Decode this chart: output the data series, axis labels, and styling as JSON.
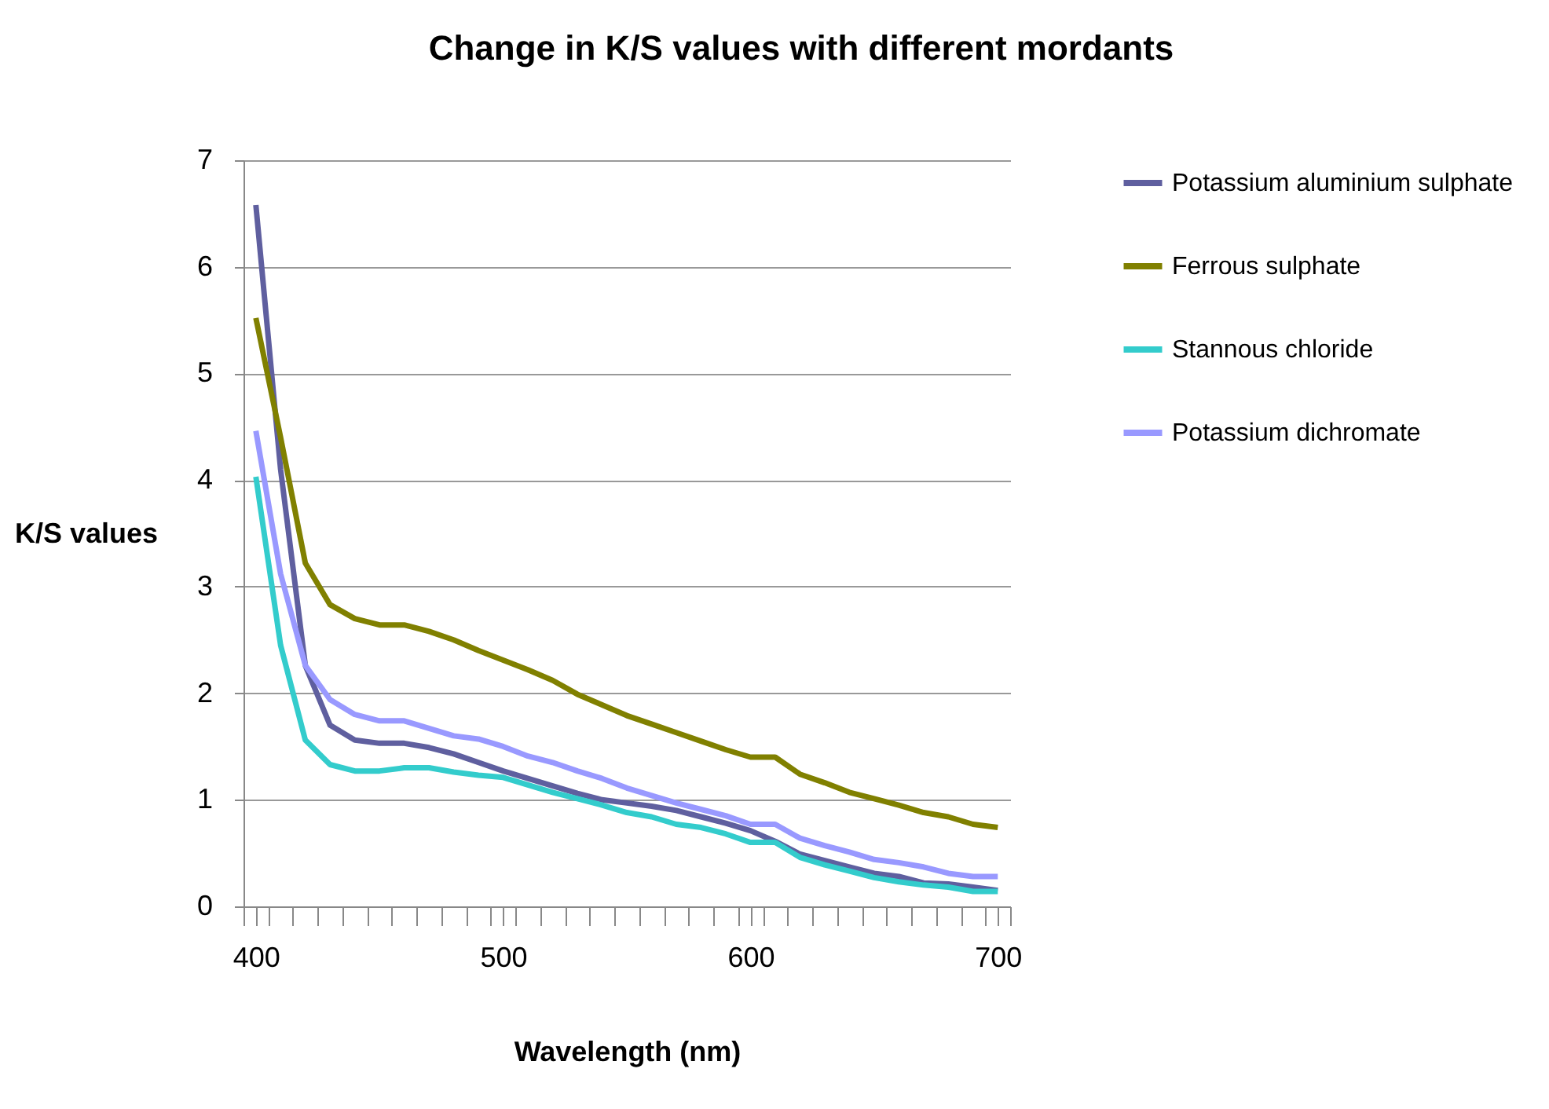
{
  "chart_data": {
    "type": "line",
    "title": "Change in K/S values with different mordants",
    "xlabel": "Wavelength (nm)",
    "ylabel": "K/S values",
    "x": [
      400,
      410,
      420,
      430,
      440,
      450,
      460,
      470,
      480,
      490,
      500,
      510,
      520,
      530,
      540,
      550,
      560,
      570,
      580,
      590,
      600,
      610,
      620,
      630,
      640,
      650,
      660,
      670,
      680,
      690,
      700
    ],
    "series": [
      {
        "name": "Potassium aluminium sulphate",
        "color": "#5f5f9f",
        "values": [
          6.58,
          4.1,
          2.26,
          1.7,
          1.56,
          1.53,
          1.53,
          1.49,
          1.43,
          1.35,
          1.27,
          1.2,
          1.13,
          1.06,
          1.0,
          0.97,
          0.94,
          0.9,
          0.84,
          0.78,
          0.71,
          0.61,
          0.49,
          0.43,
          0.37,
          0.31,
          0.28,
          0.22,
          0.21,
          0.18,
          0.15
        ]
      },
      {
        "name": "Ferrous sulphate",
        "color": "#808000",
        "values": [
          5.52,
          4.4,
          3.22,
          2.83,
          2.7,
          2.64,
          2.64,
          2.58,
          2.5,
          2.4,
          2.31,
          2.22,
          2.12,
          1.99,
          1.89,
          1.79,
          1.71,
          1.63,
          1.55,
          1.47,
          1.4,
          1.4,
          1.24,
          1.16,
          1.07,
          1.01,
          0.95,
          0.88,
          0.84,
          0.77,
          0.74
        ]
      },
      {
        "name": "Stannous chloride",
        "color": "#33cccc",
        "values": [
          4.03,
          2.45,
          1.56,
          1.33,
          1.27,
          1.27,
          1.3,
          1.3,
          1.26,
          1.23,
          1.21,
          1.14,
          1.07,
          1.01,
          0.95,
          0.88,
          0.84,
          0.77,
          0.74,
          0.68,
          0.6,
          0.6,
          0.46,
          0.39,
          0.33,
          0.27,
          0.23,
          0.2,
          0.18,
          0.14,
          0.14
        ]
      },
      {
        "name": "Potassium dichromate",
        "color": "#9999ff",
        "values": [
          4.46,
          3.12,
          2.26,
          1.94,
          1.8,
          1.74,
          1.74,
          1.67,
          1.6,
          1.57,
          1.5,
          1.41,
          1.35,
          1.27,
          1.2,
          1.11,
          1.04,
          0.97,
          0.91,
          0.85,
          0.77,
          0.77,
          0.64,
          0.57,
          0.51,
          0.44,
          0.41,
          0.37,
          0.31,
          0.28,
          0.28
        ]
      }
    ],
    "xlim": [
      395,
      705
    ],
    "xticks": [
      {
        "value": 395,
        "label": null
      },
      400,
      {
        "value": 405,
        "label": null
      },
      {
        "value": 415,
        "label": null
      },
      {
        "value": 425,
        "label": null
      },
      {
        "value": 435,
        "label": null
      },
      {
        "value": 445,
        "label": null
      },
      {
        "value": 455,
        "label": null
      },
      {
        "value": 465,
        "label": null
      },
      {
        "value": 475,
        "label": null
      },
      {
        "value": 485,
        "label": null
      },
      {
        "value": 495,
        "label": null
      },
      500,
      {
        "value": 505,
        "label": null
      },
      {
        "value": 515,
        "label": null
      },
      {
        "value": 525,
        "label": null
      },
      {
        "value": 535,
        "label": null
      },
      {
        "value": 545,
        "label": null
      },
      {
        "value": 555,
        "label": null
      },
      {
        "value": 565,
        "label": null
      },
      {
        "value": 575,
        "label": null
      },
      {
        "value": 585,
        "label": null
      },
      {
        "value": 595,
        "label": null
      },
      600,
      {
        "value": 605,
        "label": null
      },
      {
        "value": 615,
        "label": null
      },
      {
        "value": 625,
        "label": null
      },
      {
        "value": 635,
        "label": null
      },
      {
        "value": 645,
        "label": null
      },
      {
        "value": 655,
        "label": null
      },
      {
        "value": 665,
        "label": null
      },
      {
        "value": 675,
        "label": null
      },
      {
        "value": 685,
        "label": null
      },
      {
        "value": 695,
        "label": null
      },
      700,
      {
        "value": 705,
        "label": null
      }
    ],
    "ylim": [
      0,
      7
    ],
    "yticks": [
      0,
      1,
      2,
      3,
      4,
      5,
      6,
      7
    ],
    "grid": "y",
    "legend": "right"
  }
}
